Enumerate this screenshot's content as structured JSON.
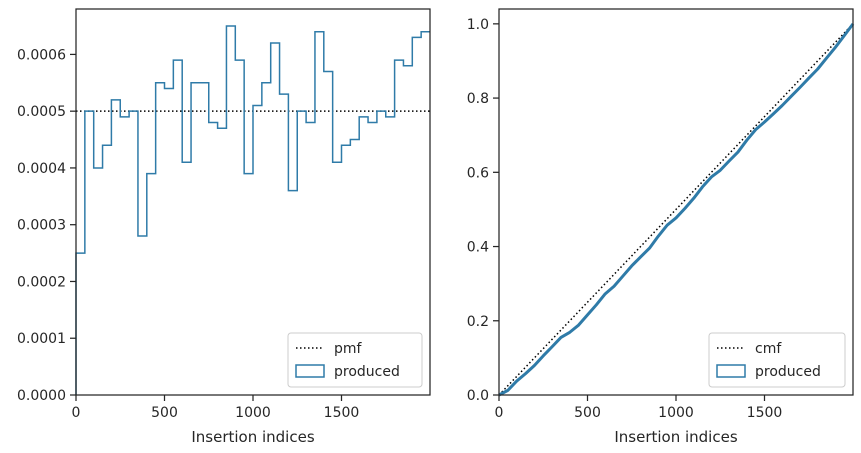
{
  "chart_data": [
    {
      "type": "step-histogram",
      "xlabel": "Insertion indices",
      "ylabel": "",
      "xlim": [
        0,
        2000
      ],
      "ylim": [
        0,
        0.00068
      ],
      "xticks": [
        0,
        500,
        1000,
        1500
      ],
      "xtick_labels": [
        "0",
        "500",
        "1000",
        "1500"
      ],
      "yticks": [
        0,
        0.0001,
        0.0002,
        0.0003,
        0.0004,
        0.0005,
        0.0006
      ],
      "ytick_labels": [
        "0.0000",
        "0.0001",
        "0.0002",
        "0.0003",
        "0.0004",
        "0.0005",
        "0.0006"
      ],
      "legend": {
        "position": "lower-right",
        "entries": [
          "pmf",
          "produced"
        ]
      },
      "series": [
        {
          "name": "pmf",
          "style": "dotted",
          "color": "#000000",
          "y": 0.0005
        },
        {
          "name": "produced",
          "style": "step",
          "color": "#2f7ba8",
          "bin_width": 50,
          "bin_starts": [
            0,
            50,
            100,
            150,
            200,
            250,
            300,
            350,
            400,
            450,
            500,
            550,
            600,
            650,
            700,
            750,
            800,
            850,
            900,
            950,
            1000,
            1050,
            1100,
            1150,
            1200,
            1250,
            1300,
            1350,
            1400,
            1450,
            1500,
            1550,
            1600,
            1650,
            1700,
            1750,
            1800,
            1850,
            1900,
            1950
          ],
          "values": [
            0.00025,
            0.0005,
            0.0004,
            0.00044,
            0.00052,
            0.00049,
            0.0005,
            0.00028,
            0.00039,
            0.00055,
            0.00054,
            0.00059,
            0.00041,
            0.00055,
            0.00055,
            0.00048,
            0.00047,
            0.00065,
            0.00059,
            0.00039,
            0.00051,
            0.00055,
            0.00062,
            0.00053,
            0.00036,
            0.0005,
            0.00048,
            0.00064,
            0.00057,
            0.00041,
            0.00044,
            0.00045,
            0.00049,
            0.00048,
            0.0005,
            0.00049,
            0.00059,
            0.00058,
            0.00063,
            0.00064
          ]
        }
      ]
    },
    {
      "type": "line",
      "xlabel": "Insertion indices",
      "ylabel": "",
      "xlim": [
        0,
        2000
      ],
      "ylim": [
        0,
        1.04
      ],
      "xticks": [
        0,
        500,
        1000,
        1500
      ],
      "xtick_labels": [
        "0",
        "500",
        "1000",
        "1500"
      ],
      "yticks": [
        0,
        0.2,
        0.4,
        0.6,
        0.8,
        1.0
      ],
      "ytick_labels": [
        "0.0",
        "0.2",
        "0.4",
        "0.6",
        "0.8",
        "1.0"
      ],
      "legend": {
        "position": "lower-right",
        "entries": [
          "cmf",
          "produced"
        ]
      },
      "series": [
        {
          "name": "cmf",
          "style": "dotted",
          "color": "#000000",
          "x": [
            0,
            2000
          ],
          "y": [
            0,
            1.0
          ]
        },
        {
          "name": "produced",
          "style": "solid",
          "color": "#2f7ba8",
          "x": [
            0,
            50,
            100,
            150,
            200,
            250,
            300,
            350,
            400,
            450,
            500,
            550,
            600,
            650,
            700,
            750,
            800,
            850,
            900,
            950,
            1000,
            1050,
            1100,
            1150,
            1200,
            1250,
            1300,
            1350,
            1400,
            1450,
            1500,
            1550,
            1600,
            1650,
            1700,
            1750,
            1800,
            1850,
            1900,
            1950,
            2000
          ],
          "y": [
            0,
            0.0125,
            0.0375,
            0.0575,
            0.0795,
            0.1055,
            0.13,
            0.155,
            0.169,
            0.1885,
            0.216,
            0.243,
            0.2725,
            0.293,
            0.3205,
            0.348,
            0.372,
            0.3955,
            0.428,
            0.4575,
            0.477,
            0.5025,
            0.53,
            0.561,
            0.5875,
            0.6055,
            0.6305,
            0.6545,
            0.6865,
            0.715,
            0.7355,
            0.7575,
            0.78,
            0.8045,
            0.8285,
            0.8535,
            0.878,
            0.9075,
            0.9365,
            0.968,
            1.0
          ]
        }
      ]
    }
  ],
  "colors": {
    "produced": "#2f7ba8",
    "reference": "#000000",
    "axes": "#262626"
  }
}
